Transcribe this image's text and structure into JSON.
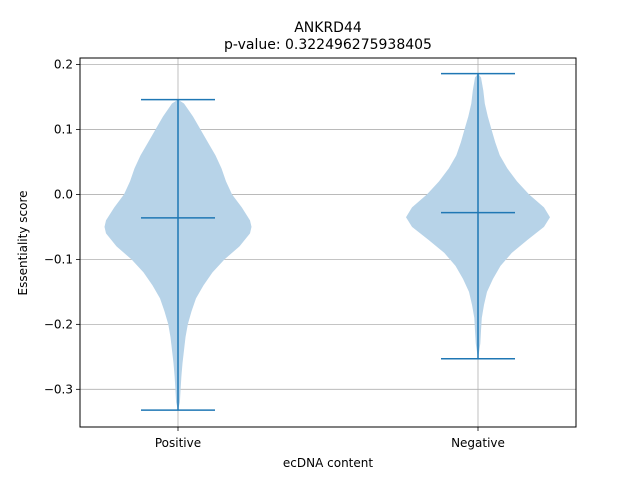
{
  "chart_data": {
    "type": "violin",
    "title": "ANKRD44",
    "subtitle": "p-value: 0.322496275938405",
    "xlabel": "ecDNA content",
    "ylabel": "Essentiality score",
    "categories": [
      "Positive",
      "Negative"
    ],
    "ylim": [
      -0.358,
      0.21
    ],
    "yticks": [
      -0.3,
      -0.2,
      -0.1,
      0.0,
      0.1,
      0.2
    ],
    "ytick_labels": [
      "−0.3",
      "−0.2",
      "−0.1",
      "0.0",
      "0.1",
      "0.2"
    ],
    "grid": true,
    "violins": [
      {
        "category": "Positive",
        "min": -0.332,
        "max": 0.146,
        "median": -0.036,
        "density": [
          [
            0.146,
            0.0
          ],
          [
            0.14,
            0.08
          ],
          [
            0.12,
            0.2
          ],
          [
            0.1,
            0.3
          ],
          [
            0.08,
            0.4
          ],
          [
            0.06,
            0.5
          ],
          [
            0.04,
            0.58
          ],
          [
            0.02,
            0.64
          ],
          [
            0.0,
            0.72
          ],
          [
            -0.02,
            0.85
          ],
          [
            -0.04,
            0.96
          ],
          [
            -0.05,
            0.98
          ],
          [
            -0.06,
            0.96
          ],
          [
            -0.08,
            0.82
          ],
          [
            -0.1,
            0.62
          ],
          [
            -0.12,
            0.46
          ],
          [
            -0.14,
            0.34
          ],
          [
            -0.16,
            0.24
          ],
          [
            -0.18,
            0.18
          ],
          [
            -0.2,
            0.13
          ],
          [
            -0.22,
            0.1
          ],
          [
            -0.24,
            0.08
          ],
          [
            -0.26,
            0.06
          ],
          [
            -0.28,
            0.045
          ],
          [
            -0.3,
            0.035
          ],
          [
            -0.32,
            0.025
          ],
          [
            -0.332,
            0.0
          ]
        ]
      },
      {
        "category": "Negative",
        "min": -0.253,
        "max": 0.186,
        "median": -0.028,
        "density": [
          [
            0.186,
            0.0
          ],
          [
            0.18,
            0.04
          ],
          [
            0.16,
            0.07
          ],
          [
            0.14,
            0.09
          ],
          [
            0.12,
            0.13
          ],
          [
            0.1,
            0.18
          ],
          [
            0.08,
            0.23
          ],
          [
            0.06,
            0.29
          ],
          [
            0.04,
            0.39
          ],
          [
            0.02,
            0.52
          ],
          [
            0.0,
            0.68
          ],
          [
            -0.02,
            0.88
          ],
          [
            -0.035,
            0.96
          ],
          [
            -0.05,
            0.88
          ],
          [
            -0.07,
            0.66
          ],
          [
            -0.09,
            0.45
          ],
          [
            -0.11,
            0.3
          ],
          [
            -0.13,
            0.2
          ],
          [
            -0.15,
            0.12
          ],
          [
            -0.17,
            0.08
          ],
          [
            -0.19,
            0.05
          ],
          [
            -0.21,
            0.04
          ],
          [
            -0.23,
            0.03
          ],
          [
            -0.253,
            0.0
          ]
        ]
      }
    ],
    "colors": {
      "body_fill": "#b7d3e8",
      "line": "#1f77b4",
      "grid": "#b0b0b0"
    }
  }
}
